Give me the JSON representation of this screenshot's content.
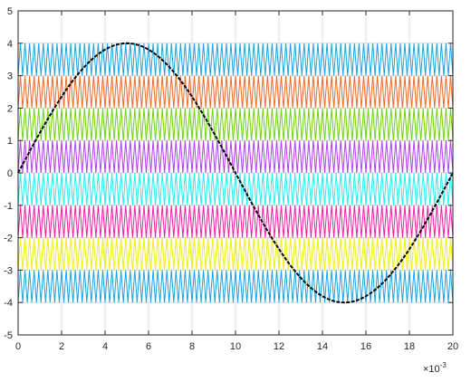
{
  "chart_data": {
    "type": "line",
    "title": "",
    "xlabel": "",
    "ylabel": "",
    "xlim": [
      0,
      20
    ],
    "ylim": [
      -5,
      5
    ],
    "x_ticks": [
      0,
      2,
      4,
      6,
      8,
      10,
      12,
      14,
      16,
      18,
      20
    ],
    "y_ticks": [
      -5,
      -4,
      -3,
      -2,
      -1,
      0,
      1,
      2,
      3,
      4,
      5
    ],
    "x_tick_labels": [
      "0",
      "2",
      "4",
      "6",
      "8",
      "10",
      "12",
      "14",
      "16",
      "18",
      "20"
    ],
    "y_tick_labels": [
      "-5",
      "-4",
      "-3",
      "-2",
      "-1",
      "0",
      "1",
      "2",
      "3",
      "4",
      "5"
    ],
    "x_exponent_label": "×10",
    "x_exponent_power": "-3",
    "grid": true,
    "legend": "none",
    "sine_reference": {
      "color": "#000000",
      "amplitude": 4,
      "period": 20,
      "x_start": 0,
      "x_end": 20
    },
    "series": [
      {
        "type": "triangle",
        "band": [
          3,
          4
        ],
        "cycles": 95,
        "color": "#1aa3e0"
      },
      {
        "type": "triangle",
        "band": [
          2,
          3
        ],
        "cycles": 95,
        "color": "#f06a2a"
      },
      {
        "type": "triangle",
        "band": [
          1,
          2
        ],
        "cycles": 95,
        "color": "#6fd40f"
      },
      {
        "type": "triangle",
        "band": [
          0,
          1
        ],
        "cycles": 95,
        "color": "#b040f0"
      },
      {
        "type": "triangle",
        "band": [
          -1,
          0
        ],
        "cycles": 95,
        "color": "#22f0f0"
      },
      {
        "type": "triangle",
        "band": [
          -2,
          -1
        ],
        "cycles": 95,
        "color": "#f020a8"
      },
      {
        "type": "triangle",
        "band": [
          -3,
          -2
        ],
        "cycles": 95,
        "color": "#f0f010"
      },
      {
        "type": "triangle",
        "band": [
          -4,
          -3
        ],
        "cycles": 95,
        "color": "#1aa3e0"
      }
    ]
  }
}
